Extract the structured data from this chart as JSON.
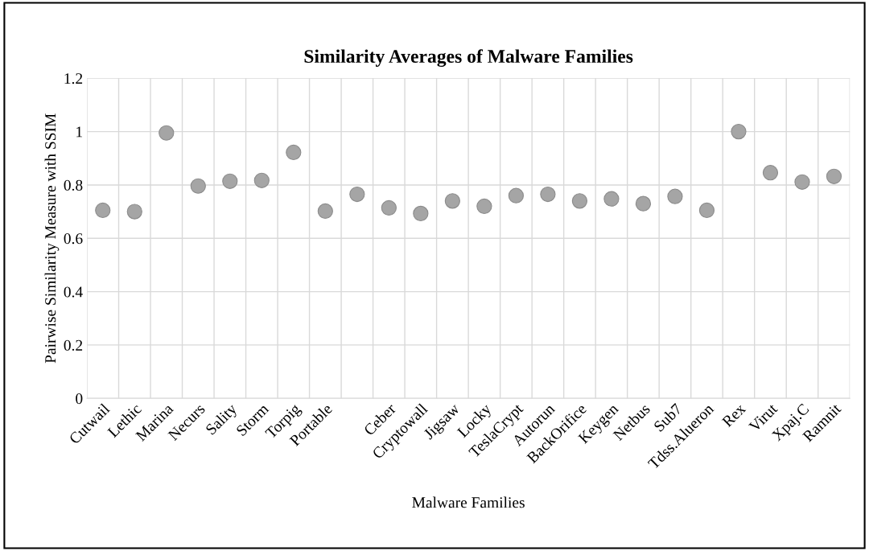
{
  "chart_data": {
    "type": "scatter",
    "title": "Similarity Averages of Malware Families",
    "xlabel": "Malware Families",
    "ylabel": "Pairwise Similarity Measure with SSIM",
    "categories": [
      "Cutwail",
      "Lethic",
      "Marina",
      "Necurs",
      "Sality",
      "Storm",
      "Torpig",
      "Portable",
      null,
      "Ceber",
      "Cryptowall",
      "Jigsaw",
      "Locky",
      "TeslaCrypt",
      "Autorun",
      "BackOrifice",
      "Keygen",
      "Netbus",
      "Sub7",
      "Tdss.Alueron",
      "Rex",
      "Virut",
      "Xpaj.C",
      "Ramnit"
    ],
    "series": [
      {
        "color": "#a5a5a5",
        "values": [
          0.705,
          0.7,
          0.995,
          0.796,
          0.814,
          0.817,
          0.922,
          0.702,
          0.765,
          0.714,
          0.693,
          0.74,
          0.72,
          0.76,
          0.765,
          0.74,
          0.748,
          0.73,
          0.757,
          0.705,
          1.0,
          0.846,
          0.811,
          0.832
        ]
      }
    ],
    "ylim": [
      0,
      1.2
    ],
    "yticks": [
      0,
      0.2,
      0.4,
      0.6,
      0.8,
      1,
      1.2
    ],
    "grid": true,
    "marker": "circle",
    "legend": false
  }
}
